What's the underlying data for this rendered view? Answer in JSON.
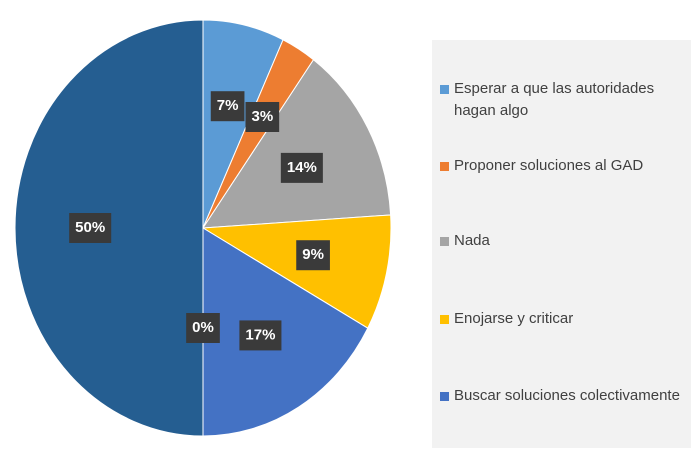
{
  "chart_data": {
    "type": "pie",
    "categories": [
      "Esperar a que las autoridades hagan algo",
      "Proponer soluciones al GAD",
      "Nada",
      "Enojarse y criticar",
      null,
      "Buscar soluciones colectivamente",
      null
    ],
    "values": [
      7,
      3,
      14,
      9,
      0,
      17,
      50
    ],
    "value_labels": [
      "7%",
      "3%",
      "14%",
      "9%",
      "0%",
      "17%",
      "50%"
    ],
    "colors": [
      "#5b9bd5",
      "#ed7d31",
      "#a5a5a5",
      "#ffc000",
      "#70ad47",
      "#4472c4",
      "#255e91"
    ],
    "legend": "right"
  }
}
